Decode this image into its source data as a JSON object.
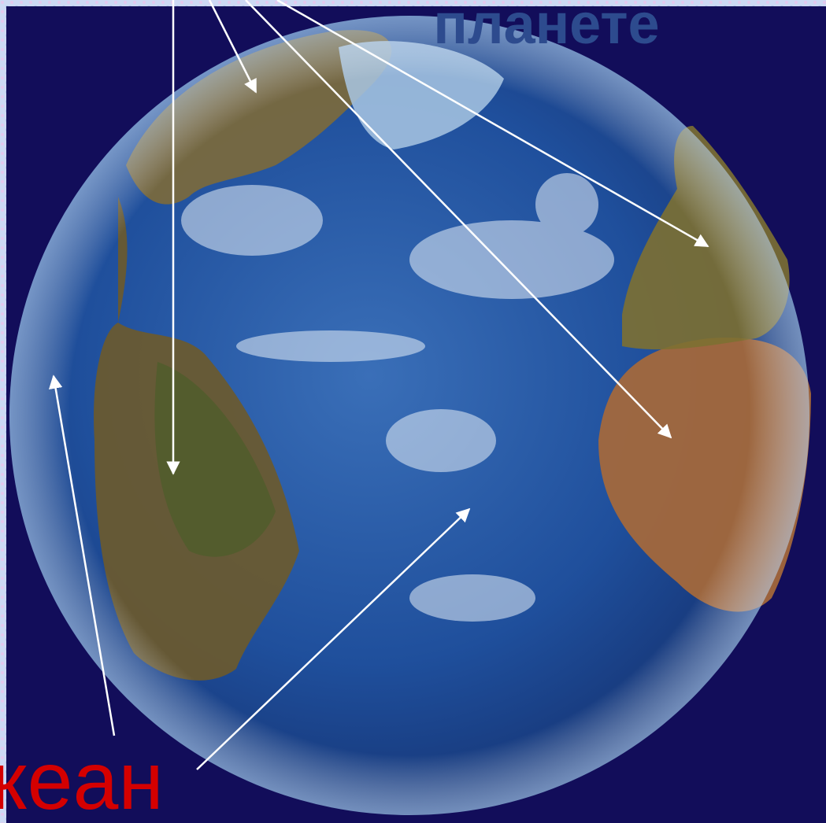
{
  "labels": {
    "top": "планете",
    "bottom": "кеан"
  }
}
